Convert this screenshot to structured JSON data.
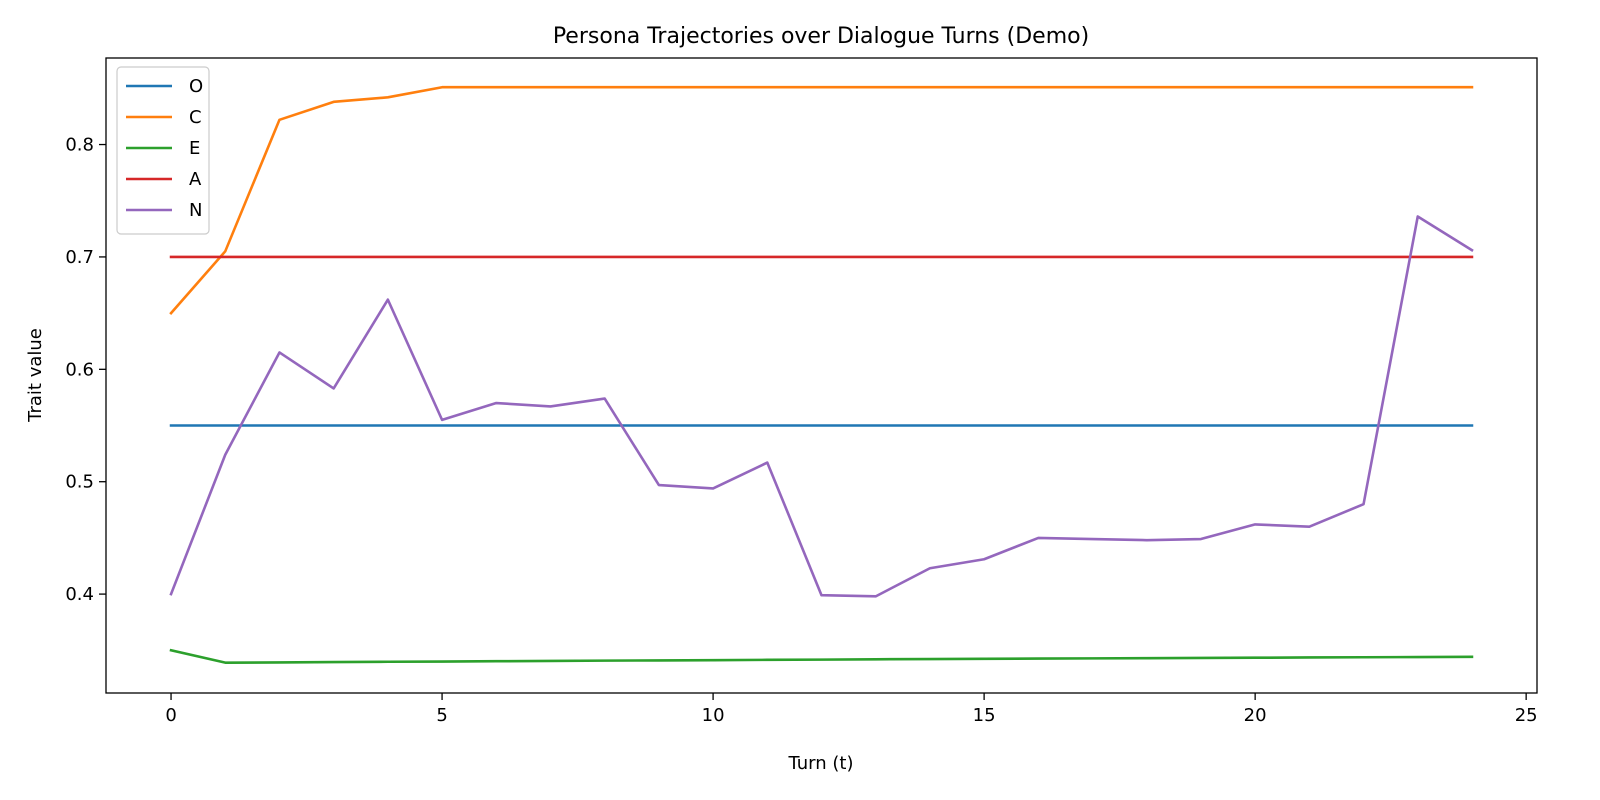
{
  "chart_data": {
    "type": "line",
    "title": "Persona Trajectories over Dialogue Turns (Demo)",
    "xlabel": "Turn (t)",
    "ylabel": "Trait value",
    "xlim": [
      -1.2,
      25.2
    ],
    "ylim": [
      0.312,
      0.877
    ],
    "xticks": [
      0,
      5,
      10,
      15,
      20,
      25
    ],
    "yticks": [
      0.4,
      0.5,
      0.6,
      0.7,
      0.8
    ],
    "grid": false,
    "legend_position": "top-left",
    "x": [
      0,
      1,
      2,
      3,
      4,
      5,
      6,
      7,
      8,
      9,
      10,
      11,
      12,
      13,
      14,
      15,
      16,
      17,
      18,
      19,
      20,
      21,
      22,
      23,
      24
    ],
    "series": [
      {
        "name": "O",
        "color": "#1f77b4",
        "values": [
          0.55,
          0.55,
          0.55,
          0.55,
          0.55,
          0.55,
          0.55,
          0.55,
          0.55,
          0.55,
          0.55,
          0.55,
          0.55,
          0.55,
          0.55,
          0.55,
          0.55,
          0.55,
          0.55,
          0.55,
          0.55,
          0.55,
          0.55,
          0.55,
          0.55
        ]
      },
      {
        "name": "C",
        "color": "#ff7f0e",
        "values": [
          0.65,
          0.705,
          0.822,
          0.838,
          0.842,
          0.851,
          0.851,
          0.851,
          0.851,
          0.851,
          0.851,
          0.851,
          0.851,
          0.851,
          0.851,
          0.851,
          0.851,
          0.851,
          0.851,
          0.851,
          0.851,
          0.851,
          0.851,
          0.851,
          0.851
        ]
      },
      {
        "name": "E",
        "color": "#2ca02c",
        "values": [
          0.35,
          0.339,
          0.3392,
          0.3395,
          0.3398,
          0.34,
          0.3403,
          0.3405,
          0.3408,
          0.341,
          0.3412,
          0.3415,
          0.3417,
          0.342,
          0.3422,
          0.3424,
          0.3426,
          0.3428,
          0.343,
          0.3432,
          0.3434,
          0.3436,
          0.3438,
          0.344,
          0.3442
        ]
      },
      {
        "name": "A",
        "color": "#d62728",
        "values": [
          0.7,
          0.7,
          0.7,
          0.7,
          0.7,
          0.7,
          0.7,
          0.7,
          0.7,
          0.7,
          0.7,
          0.7,
          0.7,
          0.7,
          0.7,
          0.7,
          0.7,
          0.7,
          0.7,
          0.7,
          0.7,
          0.7,
          0.7,
          0.7,
          0.7
        ]
      },
      {
        "name": "N",
        "color": "#9467bd",
        "values": [
          0.4,
          0.524,
          0.615,
          0.583,
          0.662,
          0.555,
          0.57,
          0.567,
          0.574,
          0.497,
          0.494,
          0.517,
          0.399,
          0.398,
          0.423,
          0.431,
          0.45,
          0.449,
          0.448,
          0.449,
          0.462,
          0.46,
          0.48,
          0.736,
          0.706
        ]
      }
    ]
  }
}
